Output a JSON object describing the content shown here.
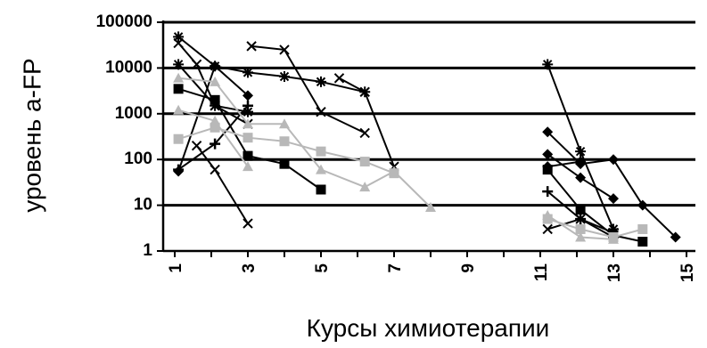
{
  "chart_data": {
    "type": "line",
    "title": "",
    "xlabel": "Курсы химиотерапии",
    "ylabel": "уровень a-FP",
    "y_scale": "log",
    "ylim": [
      1,
      100000
    ],
    "xlim": [
      1,
      15.2
    ],
    "y_ticks": [
      "1",
      "10",
      "100",
      "1000",
      "10000",
      "100000"
    ],
    "y_tick_values": [
      1,
      10,
      100,
      1000,
      10000,
      100000
    ],
    "x_ticks": [
      "1",
      "3",
      "5",
      "7",
      "9",
      "11",
      "13",
      "15"
    ],
    "x_tick_values": [
      1,
      3,
      5,
      7,
      9,
      11,
      13,
      15
    ],
    "grid": "horizontal major lines",
    "legend": "none",
    "series": [
      {
        "color": "#000000",
        "marker": "star",
        "x": [
          1.1,
          2.1,
          3.0,
          4.0,
          5.0,
          6.2
        ],
        "y": [
          48000,
          11000,
          8000,
          6500,
          5000,
          3000
        ]
      },
      {
        "color": "#000000",
        "marker": "x",
        "x": [
          3.1,
          4.0,
          5.0,
          6.2
        ],
        "y": [
          30000,
          25000,
          1100,
          380
        ]
      },
      {
        "color": "#000000",
        "marker": "x",
        "x": [
          5.5,
          6.2,
          7.0
        ],
        "y": [
          6000,
          3000,
          70
        ]
      },
      {
        "color": "#000000",
        "marker": "x",
        "x": [
          1.1,
          1.6,
          2.1,
          3.0
        ],
        "y": [
          35000,
          12000,
          1500,
          600
        ]
      },
      {
        "color": "#000000",
        "marker": "diamond",
        "x": [
          1.1,
          2.1,
          3.0
        ],
        "y": [
          55,
          11000,
          2500
        ]
      },
      {
        "color": "#000000",
        "marker": "star",
        "x": [
          1.1,
          2.1,
          3.0
        ],
        "y": [
          12000,
          1500,
          1100
        ]
      },
      {
        "color": "#000000",
        "marker": "square",
        "x": [
          1.1,
          2.1,
          3.0,
          4.0,
          5.0
        ],
        "y": [
          3500,
          2000,
          120,
          80,
          22
        ]
      },
      {
        "color": "#000000",
        "marker": "plus",
        "x": [
          1.1,
          2.1,
          3.0
        ],
        "y": [
          60,
          220,
          1500
        ]
      },
      {
        "color": "#b8b8b8",
        "marker": "square",
        "x": [
          1.1,
          2.1,
          3.0,
          4.0,
          5.0,
          6.2,
          7.0
        ],
        "y": [
          280,
          500,
          300,
          250,
          150,
          90,
          50
        ]
      },
      {
        "color": "#b8b8b8",
        "marker": "triangle",
        "x": [
          1.1,
          2.1,
          3.0,
          4.0,
          5.0,
          6.2,
          7.0,
          8.0
        ],
        "y": [
          6000,
          5000,
          600,
          600,
          60,
          25,
          55,
          9
        ]
      },
      {
        "color": "#b8b8b8",
        "marker": "triangle",
        "x": [
          1.1,
          2.1,
          3.0
        ],
        "y": [
          1200,
          700,
          70
        ]
      },
      {
        "color": "#000000",
        "marker": "x",
        "x": [
          1.6,
          2.1,
          3.0
        ],
        "y": [
          200,
          60,
          4
        ]
      },
      {
        "color": "#000000",
        "marker": "star",
        "x": [
          11.2,
          12.1,
          13.0
        ],
        "y": [
          12000,
          150,
          3
        ]
      },
      {
        "color": "#000000",
        "marker": "diamond",
        "x": [
          11.2,
          12.1,
          13.0,
          13.8,
          14.7
        ],
        "y": [
          400,
          80,
          100,
          10,
          2
        ]
      },
      {
        "color": "#000000",
        "marker": "diamond",
        "x": [
          11.2,
          12.1,
          13.0
        ],
        "y": [
          130,
          40,
          14
        ]
      },
      {
        "color": "#000000",
        "marker": "diamond",
        "x": [
          11.2,
          12.1
        ],
        "y": [
          70,
          90
        ]
      },
      {
        "color": "#000000",
        "marker": "square",
        "x": [
          11.2,
          12.1,
          13.0,
          13.8
        ],
        "y": [
          60,
          8,
          2.2,
          1.6
        ]
      },
      {
        "color": "#000000",
        "marker": "plus",
        "x": [
          11.2,
          12.1,
          13.0
        ],
        "y": [
          20,
          5,
          2
        ]
      },
      {
        "color": "#000000",
        "marker": "x",
        "x": [
          11.2,
          12.1,
          13.0
        ],
        "y": [
          3,
          5,
          2.5
        ]
      },
      {
        "color": "#b8b8b8",
        "marker": "square",
        "x": [
          11.2,
          12.1,
          13.0,
          13.8
        ],
        "y": [
          5,
          3,
          2,
          3
        ]
      },
      {
        "color": "#b8b8b8",
        "marker": "triangle",
        "x": [
          11.2,
          12.1,
          13.0
        ],
        "y": [
          6,
          2,
          1.8
        ]
      }
    ]
  }
}
